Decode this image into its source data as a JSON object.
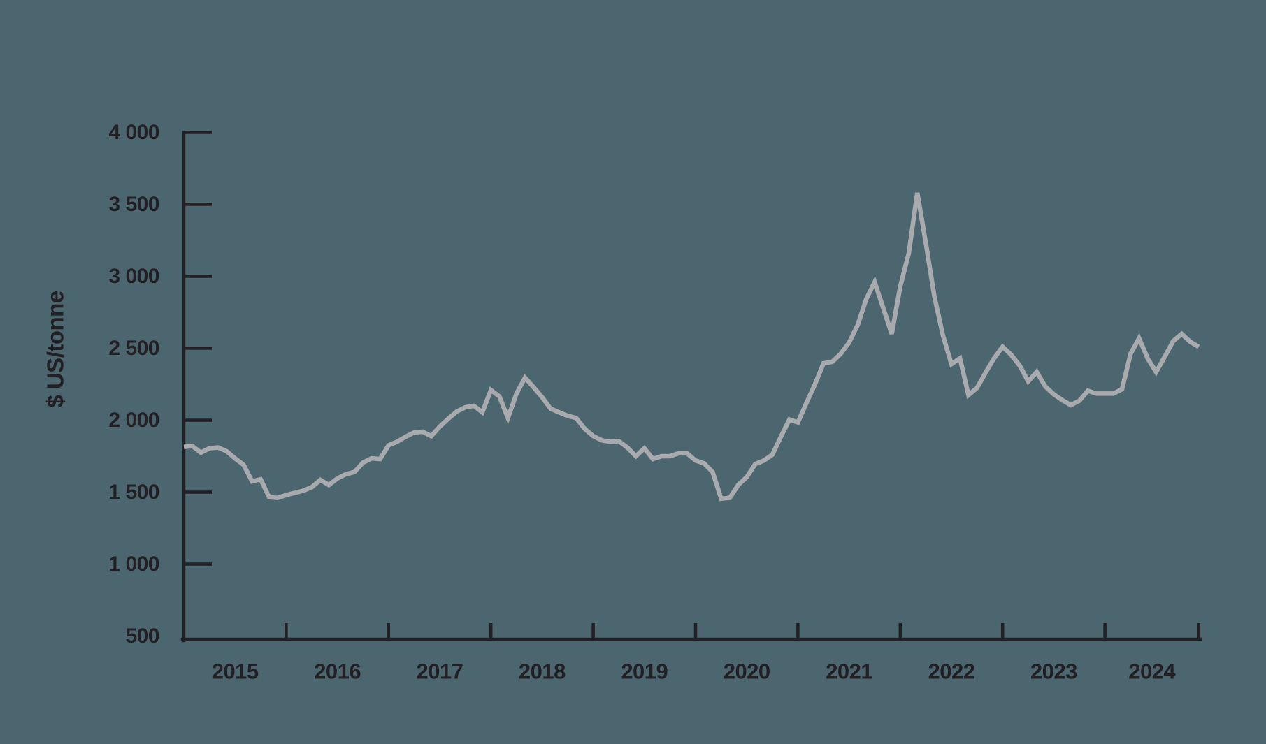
{
  "chart_data": {
    "type": "line",
    "title": "",
    "xlabel": "",
    "ylabel": "$ US/tonne",
    "ylim": [
      500,
      4000
    ],
    "grid": "off",
    "legend": "none",
    "x_years": [
      "2015",
      "2016",
      "2017",
      "2018",
      "2019",
      "2020",
      "2021",
      "2022",
      "2023",
      "2024"
    ],
    "y_ticks": [
      {
        "value": 4000,
        "label": "4 000",
        "has_mark": true
      },
      {
        "value": 3500,
        "label": "3 500",
        "has_mark": true
      },
      {
        "value": 3000,
        "label": "3 000",
        "has_mark": true
      },
      {
        "value": 2500,
        "label": "2 500",
        "has_mark": true
      },
      {
        "value": 2000,
        "label": "2 000",
        "has_mark": true
      },
      {
        "value": 1500,
        "label": "1 500",
        "has_mark": true
      },
      {
        "value": 1000,
        "label": "1 000",
        "has_mark": true
      },
      {
        "value": 500,
        "label": "500",
        "has_mark": false
      }
    ],
    "series": {
      "name": "price-us-dollars-per-tonne",
      "start": "2015-01",
      "frequency": "monthly",
      "values": [
        1815,
        1820,
        1775,
        1805,
        1810,
        1785,
        1735,
        1690,
        1575,
        1590,
        1465,
        1460,
        1480,
        1495,
        1510,
        1535,
        1585,
        1550,
        1595,
        1625,
        1640,
        1705,
        1735,
        1730,
        1825,
        1850,
        1885,
        1915,
        1920,
        1890,
        1955,
        2010,
        2060,
        2090,
        2100,
        2055,
        2210,
        2165,
        2015,
        2185,
        2295,
        2230,
        2160,
        2080,
        2055,
        2030,
        2015,
        1940,
        1890,
        1860,
        1850,
        1855,
        1810,
        1750,
        1805,
        1730,
        1750,
        1750,
        1770,
        1770,
        1720,
        1700,
        1640,
        1455,
        1460,
        1550,
        1605,
        1695,
        1720,
        1760,
        1885,
        2005,
        1985,
        2120,
        2250,
        2395,
        2405,
        2460,
        2540,
        2660,
        2840,
        2960,
        2780,
        2600,
        2930,
        3160,
        3580,
        3230,
        2860,
        2590,
        2390,
        2430,
        2175,
        2225,
        2330,
        2430,
        2510,
        2455,
        2380,
        2270,
        2335,
        2235,
        2180,
        2140,
        2105,
        2135,
        2205,
        2185,
        2185,
        2185,
        2215,
        2460,
        2570,
        2430,
        2335,
        2440,
        2550,
        2600,
        2545,
        2510
      ]
    },
    "colors": {
      "background": "#4c6670",
      "line": "#a8aaad",
      "axis": "#232025",
      "text": "#232025"
    }
  }
}
